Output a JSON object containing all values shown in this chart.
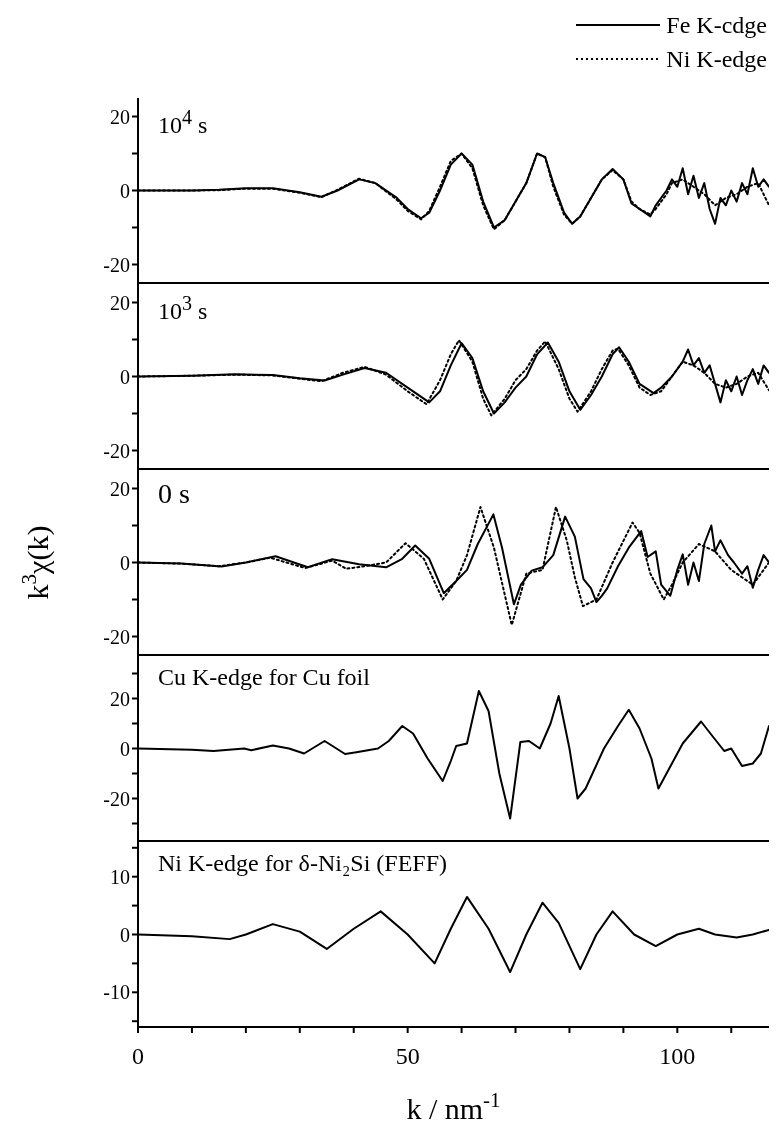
{
  "chart_data": [
    {
      "type": "line",
      "legend": "top right",
      "marker": "none",
      "tick_labels": "y",
      "annotations": [
        "10$^{4}$ s"
      ],
      "xlim": [
        0,
        117
      ],
      "xticks": [
        0,
        {
          "value": 10,
          "label": null
        },
        {
          "value": 20,
          "label": null
        },
        {
          "value": 30,
          "label": null
        },
        {
          "value": 40,
          "label": null
        },
        50,
        {
          "value": 60,
          "label": null
        },
        {
          "value": 70,
          "label": null
        },
        {
          "value": 80,
          "label": null
        },
        {
          "value": 90,
          "label": null
        },
        100,
        {
          "value": 110,
          "label": null
        }
      ],
      "ylim": [
        -25,
        25
      ],
      "yticks": [
        -20,
        {
          "value": -10,
          "label": null
        },
        0,
        {
          "value": 10,
          "label": null
        },
        20
      ],
      "series": [
        {
          "name": "Fe K-cdge",
          "color": "#000000",
          "line_style": "solid",
          "x": [
            0,
            5,
            10,
            15,
            20,
            25,
            30,
            34,
            37,
            41,
            44,
            48,
            50,
            52.5,
            54,
            56,
            58,
            60,
            62,
            64,
            66,
            68,
            70,
            72,
            74,
            75.5,
            77,
            79,
            80.5,
            82,
            84,
            86,
            88,
            90,
            91.5,
            93,
            95,
            96,
            98,
            99,
            100,
            101,
            102,
            103,
            104,
            105,
            106,
            107,
            108,
            109,
            110,
            111,
            112,
            113,
            114,
            115,
            116,
            117
          ],
          "values": [
            0,
            0,
            0,
            0.2,
            0.6,
            0.6,
            -0.5,
            -1.7,
            0,
            3,
            2,
            -2,
            -5,
            -7.5,
            -6,
            0,
            7,
            10,
            7,
            -3,
            -10,
            -8,
            -3,
            2,
            10,
            9,
            2,
            -6,
            -9,
            -7,
            -2,
            3,
            5.8,
            3,
            -3.5,
            -5,
            -7,
            -4,
            0,
            3,
            1,
            6,
            -1,
            4,
            -2,
            2,
            -5,
            -9,
            -2,
            -4,
            0,
            -3,
            2,
            -1,
            6,
            1,
            3,
            1
          ]
        },
        {
          "name": "Ni K-edge",
          "color": "#000000",
          "line_style": "dotted",
          "x": [
            0,
            5,
            10,
            15,
            20,
            25,
            30,
            34,
            37,
            41,
            44,
            48,
            50,
            52.5,
            54,
            56,
            58,
            60,
            62,
            64,
            66,
            68,
            70,
            72,
            74,
            75.5,
            77,
            79,
            80.5,
            82,
            84,
            86,
            88,
            90,
            91.5,
            93,
            95,
            96,
            98,
            99,
            101,
            103,
            105,
            107,
            109,
            111,
            113,
            115,
            117
          ],
          "values": [
            0,
            0,
            0,
            0.1,
            0.5,
            0.5,
            -0.6,
            -1.8,
            0.2,
            3.2,
            2,
            -2.5,
            -5.5,
            -7.8,
            -5.5,
            1,
            8,
            10,
            6,
            -4,
            -10.5,
            -8,
            -3,
            2,
            10,
            9,
            1,
            -6.5,
            -9,
            -7,
            -2,
            3,
            5.5,
            3,
            -3,
            -5,
            -6.5,
            -5,
            -1,
            2,
            3,
            1,
            -1,
            -4,
            -2,
            -1,
            1,
            2,
            -4
          ]
        }
      ]
    },
    {
      "type": "line",
      "marker": "none",
      "tick_labels": "y",
      "annotations": [
        "10$^{3}$ s"
      ],
      "xlim": [
        0,
        117
      ],
      "xticks": [
        0,
        {
          "value": 10,
          "label": null
        },
        {
          "value": 20,
          "label": null
        },
        {
          "value": 30,
          "label": null
        },
        {
          "value": 40,
          "label": null
        },
        50,
        {
          "value": 60,
          "label": null
        },
        {
          "value": 70,
          "label": null
        },
        {
          "value": 80,
          "label": null
        },
        {
          "value": 90,
          "label": null
        },
        100,
        {
          "value": 110,
          "label": null
        }
      ],
      "ylim": [
        -25,
        25
      ],
      "yticks": [
        -20,
        {
          "value": -10,
          "label": null
        },
        0,
        {
          "value": 10,
          "label": null
        },
        20
      ],
      "series": [
        {
          "color": "#000000",
          "line_style": "solid",
          "x": [
            0,
            10,
            18,
            25,
            30,
            34.6,
            38,
            42,
            46,
            50,
            54,
            56,
            58,
            60,
            62,
            64,
            66,
            68,
            70,
            72,
            74,
            76,
            78,
            80,
            82,
            84,
            86,
            88,
            89.2,
            91,
            93,
            95.6,
            97,
            99,
            101,
            102,
            103,
            104,
            105,
            106,
            107,
            108,
            109,
            110,
            111,
            112,
            113,
            114,
            115,
            116,
            117
          ],
          "values": [
            0,
            0.2,
            0.6,
            0.4,
            -0.5,
            -1.1,
            0.5,
            2.3,
            1,
            -3,
            -7,
            -4,
            3,
            9,
            5,
            -4,
            -10,
            -7,
            -3,
            0,
            6,
            9.2,
            4,
            -4,
            -9,
            -5,
            0,
            6,
            7.9,
            4,
            -2,
            -4.5,
            -3,
            0,
            4,
            7.3,
            3,
            5,
            1,
            3,
            -2,
            -7,
            -1,
            -4,
            0,
            -5,
            -1,
            2,
            -2,
            3,
            1
          ]
        },
        {
          "color": "#000000",
          "line_style": "dotted",
          "x": [
            0,
            10,
            18,
            25,
            30,
            34,
            38,
            42,
            46,
            50,
            53.5,
            56,
            58,
            59.5,
            62,
            64,
            65.5,
            68,
            70,
            72,
            74,
            75.5,
            78,
            80,
            81.5,
            84,
            86,
            88,
            89,
            91,
            93,
            95,
            97,
            99,
            101,
            103,
            105,
            107,
            109,
            111,
            113,
            115,
            117
          ],
          "values": [
            0,
            0.2,
            0.5,
            0.3,
            -0.6,
            -1.3,
            1,
            2.6,
            0.5,
            -4,
            -7.5,
            -1,
            6,
            9.8,
            4,
            -6,
            -10.5,
            -6,
            -1,
            2,
            7,
            9.5,
            2,
            -6,
            -9.5,
            -4,
            2,
            7,
            7.5,
            3,
            -3,
            -5,
            -4,
            0,
            4,
            3,
            1,
            -2,
            -3,
            -2,
            0,
            1,
            -3.7
          ]
        }
      ]
    },
    {
      "type": "line",
      "marker": "none",
      "tick_labels": "y",
      "ylabel": "k$^{3}$χ(k)",
      "annotations": [
        "0 s"
      ],
      "xlim": [
        0,
        117
      ],
      "xticks": [
        0,
        {
          "value": 10,
          "label": null
        },
        {
          "value": 20,
          "label": null
        },
        {
          "value": 30,
          "label": null
        },
        {
          "value": 40,
          "label": null
        },
        50,
        {
          "value": 60,
          "label": null
        },
        {
          "value": 70,
          "label": null
        },
        {
          "value": 80,
          "label": null
        },
        {
          "value": 90,
          "label": null
        },
        100,
        {
          "value": 110,
          "label": null
        }
      ],
      "ylim": [
        -25,
        25
      ],
      "yticks": [
        -20,
        {
          "value": -10,
          "label": null
        },
        0,
        {
          "value": 10,
          "label": null
        },
        20
      ],
      "series": [
        {
          "color": "#000000",
          "line_style": "solid",
          "x": [
            0,
            8,
            15.5,
            20,
            25.5,
            31.5,
            36,
            41,
            46,
            49,
            51.4,
            54,
            56.7,
            59,
            61,
            63,
            65.9,
            67.5,
            69.7,
            71,
            73,
            75,
            77,
            79.2,
            81,
            82.6,
            84,
            85,
            86,
            87,
            89,
            91,
            93.3,
            94.5,
            96,
            97,
            98.7,
            100,
            101,
            102,
            103,
            104,
            105,
            106.3,
            107,
            108,
            109.4,
            110.5,
            112,
            113,
            114,
            115,
            116,
            117
          ],
          "values": [
            0,
            -0.3,
            -1.1,
            0,
            1.7,
            -1.3,
            0.9,
            -0.5,
            -1.3,
            1,
            4.6,
            1,
            -8.3,
            -5,
            -2,
            5,
            13,
            4,
            -11.3,
            -6,
            -2.2,
            -1.3,
            2,
            12.4,
            7,
            -4.5,
            -7,
            -10.7,
            -9,
            -7,
            -1,
            4,
            8.5,
            1.5,
            3,
            -6,
            -9,
            -2,
            2.2,
            -6,
            0,
            -5,
            5,
            10,
            3,
            6,
            2,
            0,
            -3,
            -1,
            -6.8,
            -2,
            2,
            0
          ]
        },
        {
          "color": "#000000",
          "line_style": "dotted",
          "x": [
            0,
            8,
            15,
            20,
            24.5,
            31,
            36,
            38.6,
            42,
            46,
            49.6,
            53,
            56.5,
            59,
            61,
            63.5,
            66,
            69.3,
            72,
            75,
            77.5,
            79.5,
            81,
            82.5,
            85,
            88,
            91.7,
            93,
            95,
            97.5,
            99,
            101,
            104,
            107,
            110,
            114,
            117
          ],
          "values": [
            0,
            -0.3,
            -1,
            0,
            1.3,
            -1.5,
            0.5,
            -1.7,
            -1,
            0,
            5.2,
            1,
            -10,
            -5,
            2,
            15,
            4,
            -16.9,
            -3,
            -2,
            15,
            6,
            -4,
            -11.8,
            -10,
            0,
            10.8,
            8,
            -3,
            -10,
            -6,
            0,
            5,
            3,
            -2,
            -6,
            0
          ]
        }
      ]
    },
    {
      "type": "line",
      "marker": "none",
      "tick_labels": "y",
      "annotations": [
        "Cu K-edge for Cu foil"
      ],
      "xlim": [
        0,
        117
      ],
      "xticks": [
        0,
        {
          "value": 10,
          "label": null
        },
        {
          "value": 20,
          "label": null
        },
        {
          "value": 30,
          "label": null
        },
        {
          "value": 40,
          "label": null
        },
        50,
        {
          "value": 60,
          "label": null
        },
        {
          "value": 70,
          "label": null
        },
        {
          "value": 80,
          "label": null
        },
        {
          "value": 90,
          "label": null
        },
        100,
        {
          "value": 110,
          "label": null
        }
      ],
      "ylim": [
        -37,
        37
      ],
      "yticks": [
        {
          "value": -30,
          "label": null
        },
        -20,
        {
          "value": -10,
          "label": null
        },
        0,
        {
          "value": 10,
          "label": null
        },
        20,
        {
          "value": 30,
          "label": null
        }
      ],
      "series": [
        {
          "color": "#000000",
          "line_style": "solid",
          "x": [
            0,
            10,
            14,
            19.7,
            21,
            25,
            28,
            30.8,
            34.6,
            38.4,
            40.5,
            44.5,
            46.5,
            49,
            51,
            53.7,
            56.5,
            58,
            59,
            61,
            63.2,
            65,
            67,
            69,
            70.9,
            72.5,
            74.5,
            76.5,
            78,
            80,
            81.5,
            83,
            86.4,
            89,
            91,
            93,
            95.2,
            96.5,
            98,
            101,
            104.4,
            106.5,
            108.7,
            110,
            112,
            114,
            115.5,
            117
          ],
          "values": [
            0,
            -0.5,
            -1,
            0,
            -0.7,
            1.2,
            0,
            -2,
            3,
            -2.2,
            -1.5,
            0,
            3,
            9,
            6,
            -4,
            -13,
            -5,
            1,
            2,
            23,
            15,
            -10,
            -28,
            2.6,
            3,
            0,
            10,
            21,
            0,
            -20,
            -16,
            0,
            9,
            15.5,
            8,
            -4,
            -16,
            -10,
            2,
            10.8,
            5,
            -1,
            0,
            -7,
            -6,
            -2,
            9
          ]
        }
      ]
    },
    {
      "type": "line",
      "marker": "none",
      "annotations": [
        "Ni K-edge for δ-Ni₂Si (FEFF)"
      ],
      "xlabel": "k / nm$^{-1}$",
      "xlim": [
        0,
        117
      ],
      "xticks": [
        0,
        {
          "value": 10,
          "label": null
        },
        {
          "value": 20,
          "label": null
        },
        {
          "value": 30,
          "label": null
        },
        {
          "value": 40,
          "label": null
        },
        50,
        {
          "value": 60,
          "label": null
        },
        {
          "value": 70,
          "label": null
        },
        {
          "value": 80,
          "label": null
        },
        {
          "value": 90,
          "label": null
        },
        100,
        {
          "value": 110,
          "label": null
        }
      ],
      "ylim": [
        -16,
        16
      ],
      "yticks": [
        {
          "value": -15,
          "label": null
        },
        -10,
        {
          "value": -5,
          "label": null
        },
        0,
        {
          "value": 5,
          "label": null
        },
        10,
        {
          "value": 15,
          "label": null
        }
      ],
      "series": [
        {
          "color": "#000000",
          "line_style": "solid",
          "x": [
            0,
            10,
            17,
            20,
            25,
            30,
            35,
            40,
            45,
            50,
            55,
            58,
            61,
            65,
            69,
            72,
            75,
            78,
            82,
            85,
            88,
            92,
            96,
            100,
            104,
            107,
            111,
            114,
            117
          ],
          "values": [
            0,
            -0.3,
            -0.8,
            0,
            1.8,
            0.5,
            -2.5,
            1,
            4,
            0,
            -5,
            1,
            6.5,
            1,
            -6.5,
            0,
            5.5,
            2,
            -6,
            0,
            4,
            0,
            -2,
            0,
            1,
            0,
            -0.5,
            0,
            0.8
          ]
        }
      ]
    }
  ]
}
